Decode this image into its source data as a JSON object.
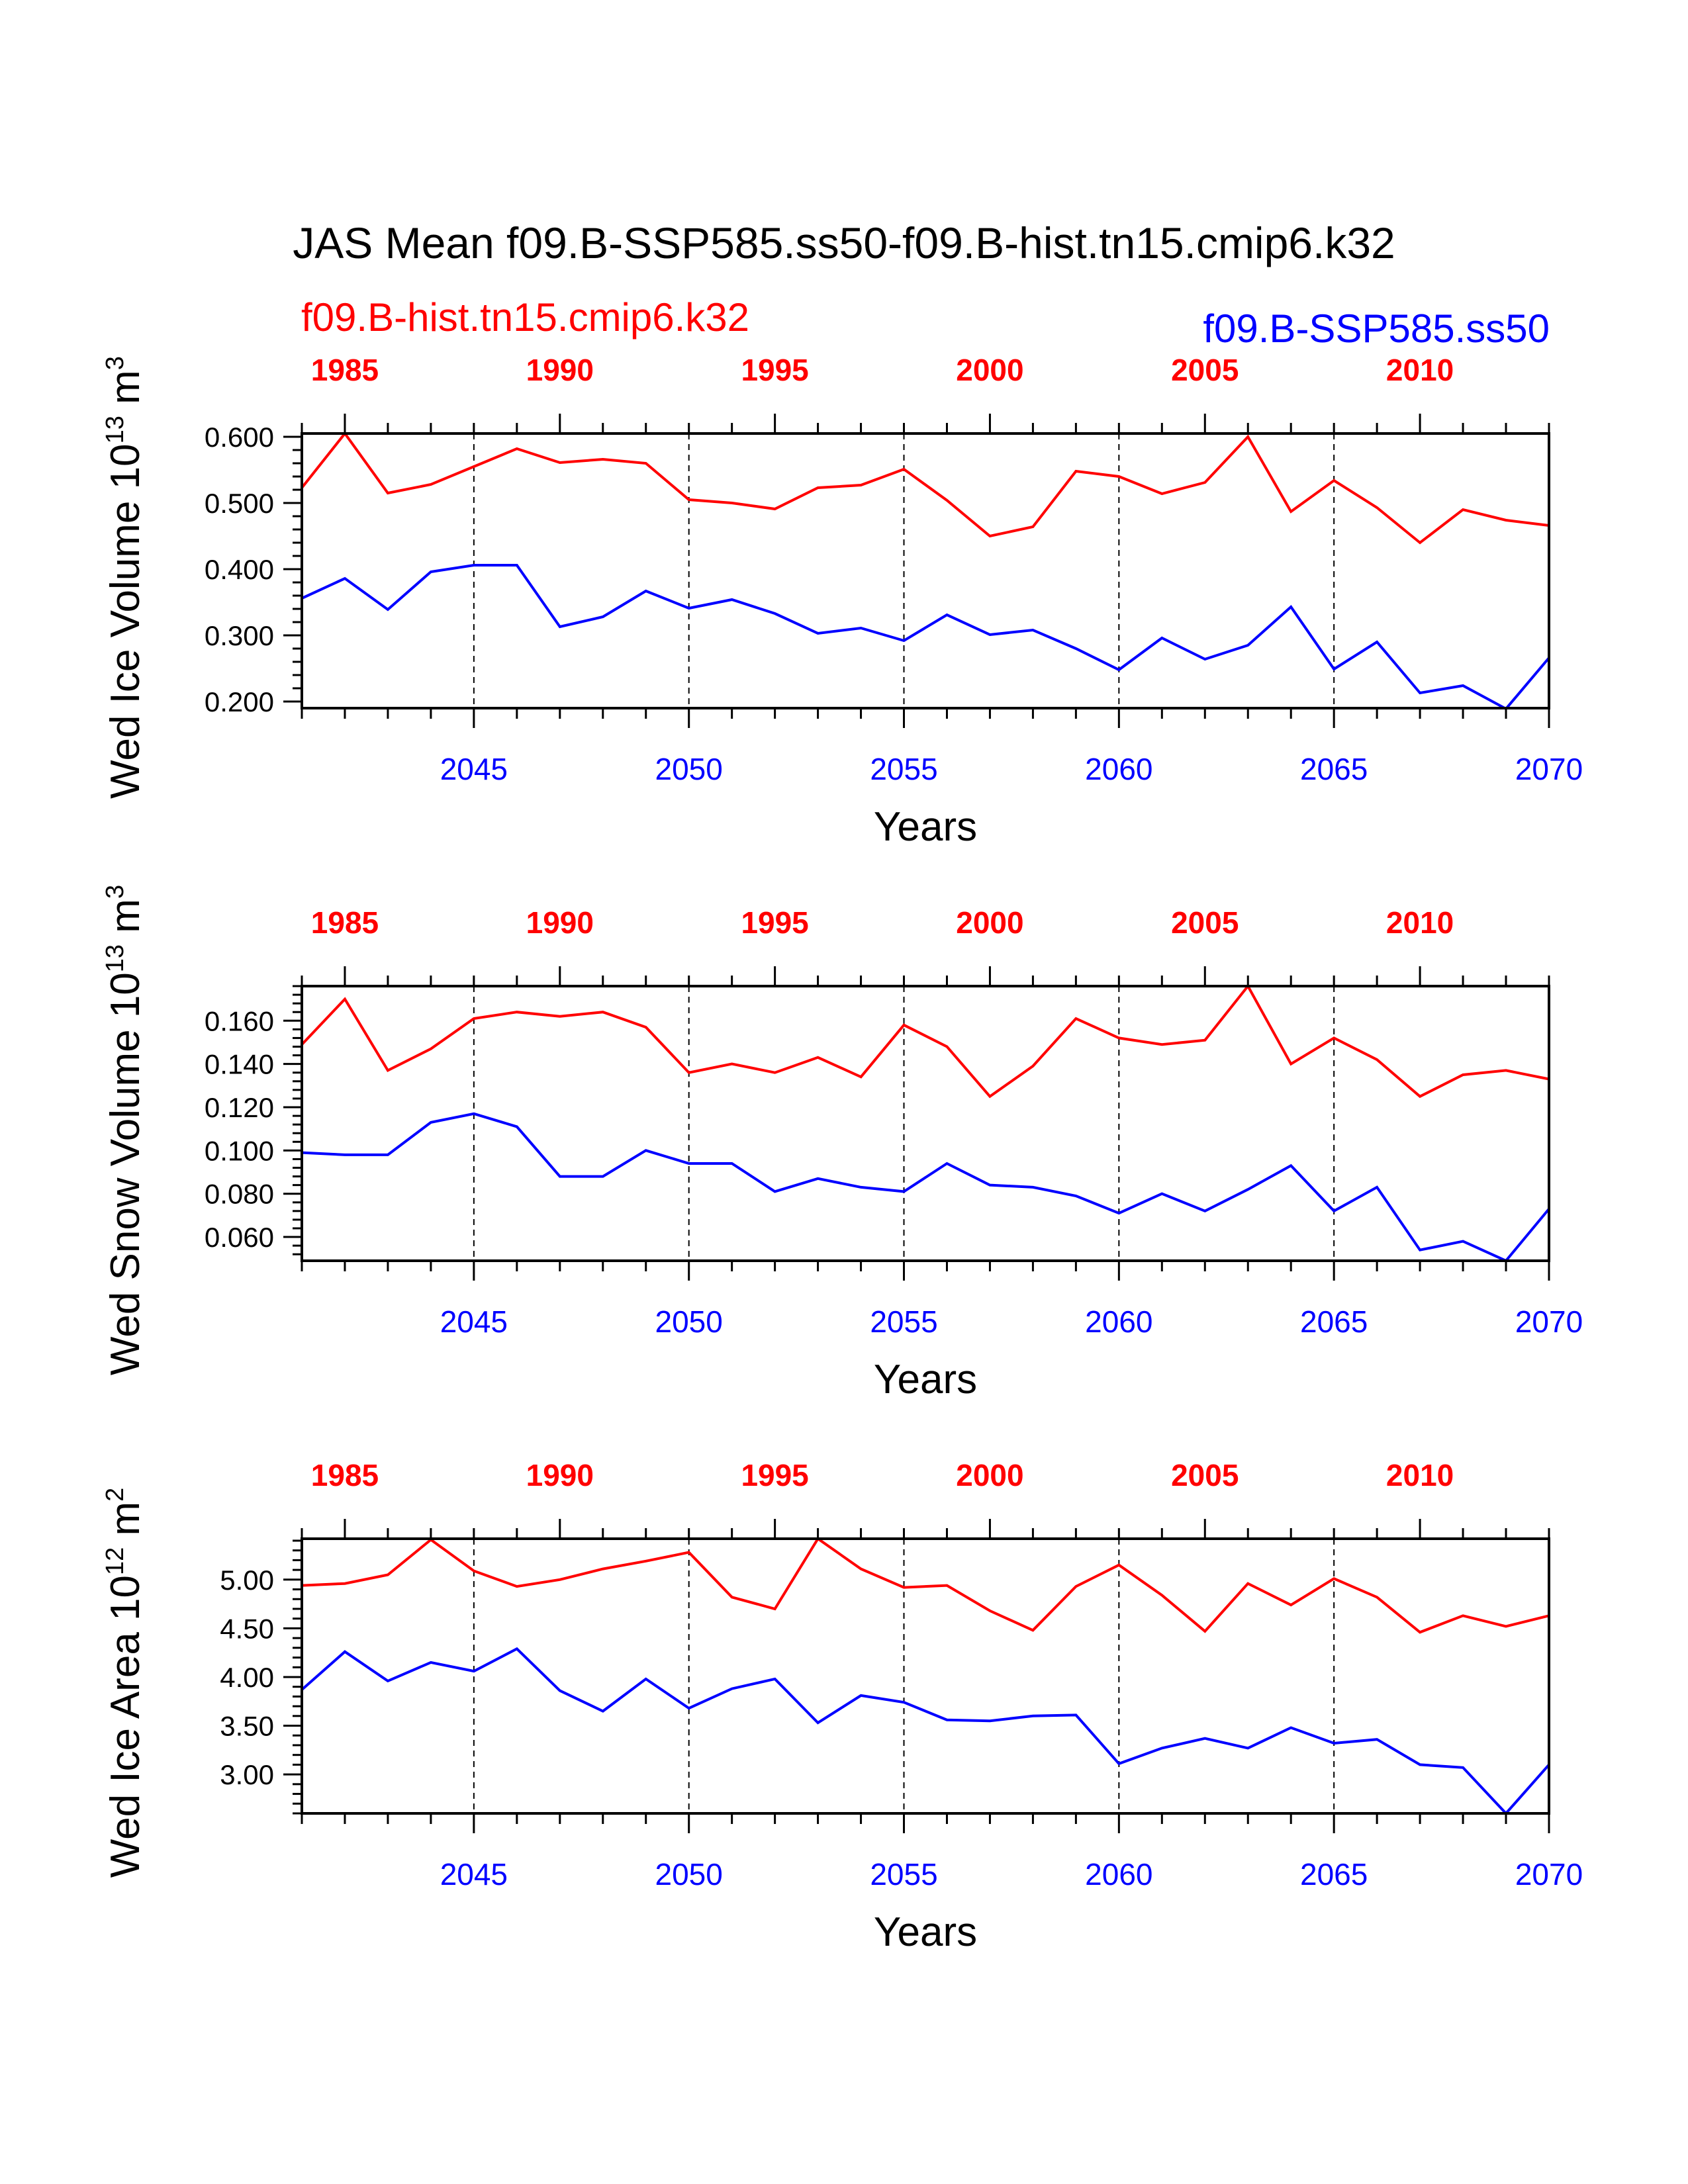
{
  "figure": {
    "title": "JAS Mean f09.B-SSP585.ss50-f09.B-hist.tn15.cmip6.k32",
    "legend_red": "f09.B-hist.tn15.cmip6.k32",
    "legend_blue": "f09.B-SSP585.ss50",
    "colors": {
      "hist": "#ff0000",
      "ssp": "#0000ff",
      "axis": "#000000"
    }
  },
  "chart_data": [
    {
      "type": "line",
      "ylabel": "Wed Ice Volume 10",
      "ylabel_exp": "13",
      "ylabel_unit": " m",
      "ylabel_unit_exp": "3",
      "xlabel": "Years",
      "xlim_bottom": [
        2041,
        2070
      ],
      "xlim_top": [
        1984,
        2013
      ],
      "ylim": [
        0.19,
        0.605
      ],
      "yticks": [
        0.2,
        0.3,
        0.4,
        0.5,
        0.6
      ],
      "ytick_labels": [
        "0.200",
        "0.300",
        "0.400",
        "0.500",
        "0.600"
      ],
      "bottom_ticks": [
        2045,
        2050,
        2055,
        2060,
        2065,
        2070
      ],
      "top_ticks": [
        1985,
        1990,
        1995,
        2000,
        2005,
        2010
      ],
      "grid_x": [
        2045,
        2050,
        2055,
        2060,
        2065
      ],
      "x": [
        2041,
        2042,
        2043,
        2044,
        2045,
        2046,
        2047,
        2048,
        2049,
        2050,
        2051,
        2052,
        2053,
        2054,
        2055,
        2056,
        2057,
        2058,
        2059,
        2060,
        2061,
        2062,
        2063,
        2064,
        2065,
        2066,
        2067,
        2068,
        2069,
        2070
      ],
      "series": [
        {
          "name": "f09.B-hist.tn15.cmip6.k32",
          "color": "#ff0000",
          "values": [
            0.523,
            0.605,
            0.515,
            0.528,
            0.555,
            0.582,
            0.561,
            0.566,
            0.56,
            0.505,
            0.5,
            0.491,
            0.523,
            0.527,
            0.551,
            0.504,
            0.45,
            0.464,
            0.548,
            0.54,
            0.514,
            0.531,
            0.6,
            0.487,
            0.534,
            0.493,
            0.44,
            0.49,
            0.474,
            0.466
          ]
        },
        {
          "name": "f09.B-SSP585.ss50",
          "color": "#0000ff",
          "values": [
            0.356,
            0.386,
            0.339,
            0.396,
            0.406,
            0.406,
            0.313,
            0.328,
            0.367,
            0.341,
            0.354,
            0.333,
            0.303,
            0.311,
            0.292,
            0.331,
            0.301,
            0.308,
            0.28,
            0.248,
            0.296,
            0.264,
            0.285,
            0.343,
            0.249,
            0.29,
            0.213,
            0.224,
            0.189,
            0.266
          ]
        }
      ]
    },
    {
      "type": "line",
      "ylabel": "Wed Snow Volume 10",
      "ylabel_exp": "13",
      "ylabel_unit": " m",
      "ylabel_unit_exp": "3",
      "xlabel": "Years",
      "xlim_bottom": [
        2041,
        2070
      ],
      "xlim_top": [
        1984,
        2013
      ],
      "ylim": [
        0.049,
        0.176
      ],
      "yticks": [
        0.06,
        0.08,
        0.1,
        0.12,
        0.14,
        0.16
      ],
      "ytick_labels": [
        "0.060",
        "0.080",
        "0.100",
        "0.120",
        "0.140",
        "0.160"
      ],
      "bottom_ticks": [
        2045,
        2050,
        2055,
        2060,
        2065,
        2070
      ],
      "top_ticks": [
        1985,
        1990,
        1995,
        2000,
        2005,
        2010
      ],
      "grid_x": [
        2045,
        2050,
        2055,
        2060,
        2065
      ],
      "x": [
        2041,
        2042,
        2043,
        2044,
        2045,
        2046,
        2047,
        2048,
        2049,
        2050,
        2051,
        2052,
        2053,
        2054,
        2055,
        2056,
        2057,
        2058,
        2059,
        2060,
        2061,
        2062,
        2063,
        2064,
        2065,
        2066,
        2067,
        2068,
        2069,
        2070
      ],
      "series": [
        {
          "name": "f09.B-hist.tn15.cmip6.k32",
          "color": "#ff0000",
          "values": [
            0.149,
            0.17,
            0.137,
            0.147,
            0.161,
            0.164,
            0.162,
            0.164,
            0.157,
            0.136,
            0.14,
            0.136,
            0.143,
            0.134,
            0.158,
            0.148,
            0.125,
            0.139,
            0.161,
            0.152,
            0.149,
            0.151,
            0.176,
            0.14,
            0.152,
            0.142,
            0.125,
            0.135,
            0.137,
            0.133
          ]
        },
        {
          "name": "f09.B-SSP585.ss50",
          "color": "#0000ff",
          "values": [
            0.099,
            0.098,
            0.098,
            0.113,
            0.117,
            0.111,
            0.088,
            0.088,
            0.1,
            0.094,
            0.094,
            0.081,
            0.087,
            0.083,
            0.081,
            0.094,
            0.084,
            0.083,
            0.079,
            0.071,
            0.08,
            0.072,
            0.082,
            0.093,
            0.072,
            0.083,
            0.054,
            0.058,
            0.049,
            0.073
          ]
        }
      ]
    },
    {
      "type": "line",
      "ylabel": "Wed Ice Area 10",
      "ylabel_exp": "12",
      "ylabel_unit": " m",
      "ylabel_unit_exp": "2",
      "xlabel": "Years",
      "xlim_bottom": [
        2041,
        2070
      ],
      "xlim_top": [
        1984,
        2013
      ],
      "ylim": [
        2.6,
        5.42
      ],
      "yticks": [
        3.0,
        3.5,
        4.0,
        4.5,
        5.0
      ],
      "ytick_labels": [
        "3.00",
        "3.50",
        "4.00",
        "4.50",
        "5.00"
      ],
      "bottom_ticks": [
        2045,
        2050,
        2055,
        2060,
        2065,
        2070
      ],
      "top_ticks": [
        1985,
        1990,
        1995,
        2000,
        2005,
        2010
      ],
      "grid_x": [
        2045,
        2050,
        2055,
        2060,
        2065
      ],
      "x": [
        2041,
        2042,
        2043,
        2044,
        2045,
        2046,
        2047,
        2048,
        2049,
        2050,
        2051,
        2052,
        2053,
        2054,
        2055,
        2056,
        2057,
        2058,
        2059,
        2060,
        2061,
        2062,
        2063,
        2064,
        2065,
        2066,
        2067,
        2068,
        2069,
        2070
      ],
      "series": [
        {
          "name": "f09.B-hist.tn15.cmip6.k32",
          "color": "#ff0000",
          "values": [
            4.94,
            4.96,
            5.05,
            5.41,
            5.09,
            4.93,
            5.0,
            5.11,
            5.19,
            5.28,
            4.82,
            4.7,
            5.42,
            5.11,
            4.92,
            4.94,
            4.68,
            4.48,
            4.93,
            5.15,
            4.84,
            4.47,
            4.96,
            4.74,
            5.01,
            4.82,
            4.46,
            4.63,
            4.52,
            4.63
          ]
        },
        {
          "name": "f09.B-SSP585.ss50",
          "color": "#0000ff",
          "values": [
            3.87,
            4.26,
            3.96,
            4.15,
            4.06,
            4.29,
            3.86,
            3.65,
            3.98,
            3.68,
            3.88,
            3.98,
            3.53,
            3.81,
            3.74,
            3.56,
            3.55,
            3.6,
            3.61,
            3.11,
            3.27,
            3.37,
            3.27,
            3.48,
            3.32,
            3.36,
            3.1,
            3.07,
            2.6,
            3.1
          ]
        }
      ]
    }
  ]
}
